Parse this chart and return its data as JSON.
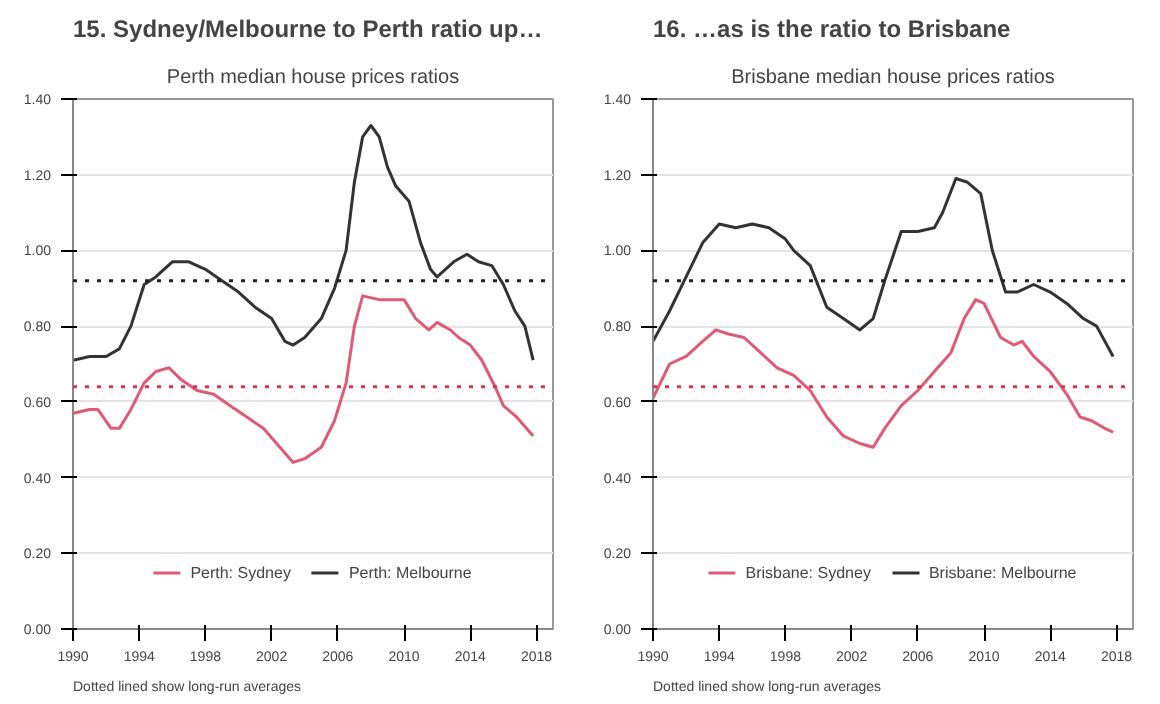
{
  "chart_data": [
    {
      "type": "line",
      "title": "15. Sydney/Melbourne to Perth ratio up…",
      "subtitle": "Perth median house prices ratios",
      "xlim": [
        1990,
        2019
      ],
      "xticks": [
        1990,
        1994,
        1998,
        2002,
        2006,
        2010,
        2014,
        2018
      ],
      "ylim": [
        0,
        1.4
      ],
      "yticks": [
        {
          "value": 0,
          "label": "0.00"
        },
        {
          "value": 0.2,
          "label": "0.20"
        },
        {
          "value": 0.4,
          "label": "0.40"
        },
        {
          "value": 0.6,
          "label": "0.60"
        },
        {
          "value": 0.8,
          "label": "0.80"
        },
        {
          "value": 1.0,
          "label": "1.00"
        },
        {
          "value": 1.2,
          "label": "1.20"
        },
        {
          "value": 1.4,
          "label": "1.40"
        }
      ],
      "grid": "y",
      "legend": "bottom",
      "line_style": "solid",
      "marker": "none",
      "series": [
        {
          "name": "Perth: Sydney",
          "color": "#e05a78",
          "x": [
            1990,
            1991,
            1991.5,
            1992.3,
            1992.8,
            1993.5,
            1994.3,
            1995,
            1995.8,
            1996.5,
            1997.5,
            1998.5,
            1999.5,
            2000.5,
            2001.5,
            2002.5,
            2003.3,
            2004,
            2005,
            2005.8,
            2006.5,
            2007,
            2007.5,
            2008.5,
            2009.3,
            2010,
            2010.7,
            2011.5,
            2012,
            2012.8,
            2013.3,
            2014,
            2014.7,
            2015.5,
            2016,
            2016.8,
            2017.8
          ],
          "values": [
            0.57,
            0.58,
            0.58,
            0.53,
            0.53,
            0.58,
            0.65,
            0.68,
            0.69,
            0.66,
            0.63,
            0.62,
            0.59,
            0.56,
            0.53,
            0.48,
            0.44,
            0.45,
            0.48,
            0.55,
            0.65,
            0.8,
            0.88,
            0.87,
            0.87,
            0.87,
            0.82,
            0.79,
            0.81,
            0.79,
            0.77,
            0.75,
            0.71,
            0.64,
            0.59,
            0.56,
            0.51
          ]
        },
        {
          "name": "Perth: Melbourne",
          "color": "#333333",
          "x": [
            1990,
            1991,
            1992,
            1992.8,
            1993.5,
            1994.3,
            1995,
            1996,
            1997,
            1998,
            1999,
            2000,
            2001,
            2002,
            2002.8,
            2003.3,
            2004,
            2005,
            2005.8,
            2006.5,
            2007,
            2007.5,
            2008,
            2008.5,
            2009,
            2009.5,
            2010.3,
            2011,
            2011.6,
            2012,
            2013,
            2013.8,
            2014.5,
            2015.3,
            2016,
            2016.7,
            2017.3,
            2017.8
          ],
          "values": [
            0.71,
            0.72,
            0.72,
            0.74,
            0.8,
            0.91,
            0.93,
            0.97,
            0.97,
            0.95,
            0.92,
            0.89,
            0.85,
            0.82,
            0.76,
            0.75,
            0.77,
            0.82,
            0.9,
            1.0,
            1.18,
            1.3,
            1.33,
            1.3,
            1.22,
            1.17,
            1.13,
            1.02,
            0.95,
            0.93,
            0.97,
            0.99,
            0.97,
            0.96,
            0.91,
            0.84,
            0.8,
            0.71
          ]
        }
      ],
      "ref_lines": [
        {
          "axis": "y",
          "value": 0.92,
          "color": "#222222",
          "line_style": "dotted"
        },
        {
          "axis": "y",
          "value": 0.64,
          "color": "#e0304f",
          "line_style": "dotted"
        }
      ],
      "annotations": [
        "Dotted lined show long-run averages"
      ]
    },
    {
      "type": "line",
      "title": "16. …as is the ratio to Brisbane",
      "subtitle": "Brisbane median house prices ratios",
      "xlim": [
        1990,
        2019
      ],
      "xticks": [
        1990,
        1994,
        1998,
        2002,
        2006,
        2010,
        2014,
        2018
      ],
      "ylim": [
        0,
        1.4
      ],
      "yticks": [
        {
          "value": 0,
          "label": "0.00"
        },
        {
          "value": 0.2,
          "label": "0.20"
        },
        {
          "value": 0.4,
          "label": "0.40"
        },
        {
          "value": 0.6,
          "label": "0.60"
        },
        {
          "value": 0.8,
          "label": "0.80"
        },
        {
          "value": 1.0,
          "label": "1.00"
        },
        {
          "value": 1.2,
          "label": "1.20"
        },
        {
          "value": 1.4,
          "label": "1.40"
        }
      ],
      "grid": "y",
      "legend": "bottom",
      "line_style": "solid",
      "marker": "none",
      "series": [
        {
          "name": "Brisbane: Sydney",
          "color": "#e05a78",
          "x": [
            1990,
            1991,
            1992,
            1993,
            1993.8,
            1994.5,
            1995.5,
            1996.5,
            1997.5,
            1998.5,
            1999.5,
            2000.5,
            2001.5,
            2002.5,
            2003.3,
            2004,
            2005,
            2006,
            2007,
            2008,
            2008.8,
            2009.5,
            2010,
            2011,
            2011.8,
            2012.3,
            2013,
            2014,
            2015,
            2015.8,
            2016.5,
            2017.3,
            2017.8
          ],
          "values": [
            0.61,
            0.7,
            0.72,
            0.76,
            0.79,
            0.78,
            0.77,
            0.73,
            0.69,
            0.67,
            0.63,
            0.56,
            0.51,
            0.49,
            0.48,
            0.53,
            0.59,
            0.63,
            0.68,
            0.73,
            0.82,
            0.87,
            0.86,
            0.77,
            0.75,
            0.76,
            0.72,
            0.68,
            0.62,
            0.56,
            0.55,
            0.53,
            0.52
          ]
        },
        {
          "name": "Brisbane: Melbourne",
          "color": "#333333",
          "x": [
            1990,
            1991,
            1992,
            1993,
            1994,
            1995,
            1996,
            1997,
            1998,
            1998.5,
            1999.5,
            2000.5,
            2001.5,
            2002.5,
            2003.3,
            2004,
            2005,
            2006,
            2007,
            2007.5,
            2008.3,
            2009,
            2009.8,
            2010.5,
            2011.3,
            2012,
            2013,
            2014,
            2015,
            2016,
            2016.8,
            2017.8
          ],
          "values": [
            0.76,
            0.84,
            0.93,
            1.02,
            1.07,
            1.06,
            1.07,
            1.06,
            1.03,
            1.0,
            0.96,
            0.85,
            0.82,
            0.79,
            0.82,
            0.92,
            1.05,
            1.05,
            1.06,
            1.1,
            1.19,
            1.18,
            1.15,
            1.0,
            0.89,
            0.89,
            0.91,
            0.89,
            0.86,
            0.82,
            0.8,
            0.72
          ]
        }
      ],
      "ref_lines": [
        {
          "axis": "y",
          "value": 0.92,
          "color": "#222222",
          "line_style": "dotted"
        },
        {
          "axis": "y",
          "value": 0.64,
          "color": "#e0304f",
          "line_style": "dotted"
        }
      ],
      "annotations": [
        "Dotted lined show long-run averages"
      ]
    }
  ]
}
